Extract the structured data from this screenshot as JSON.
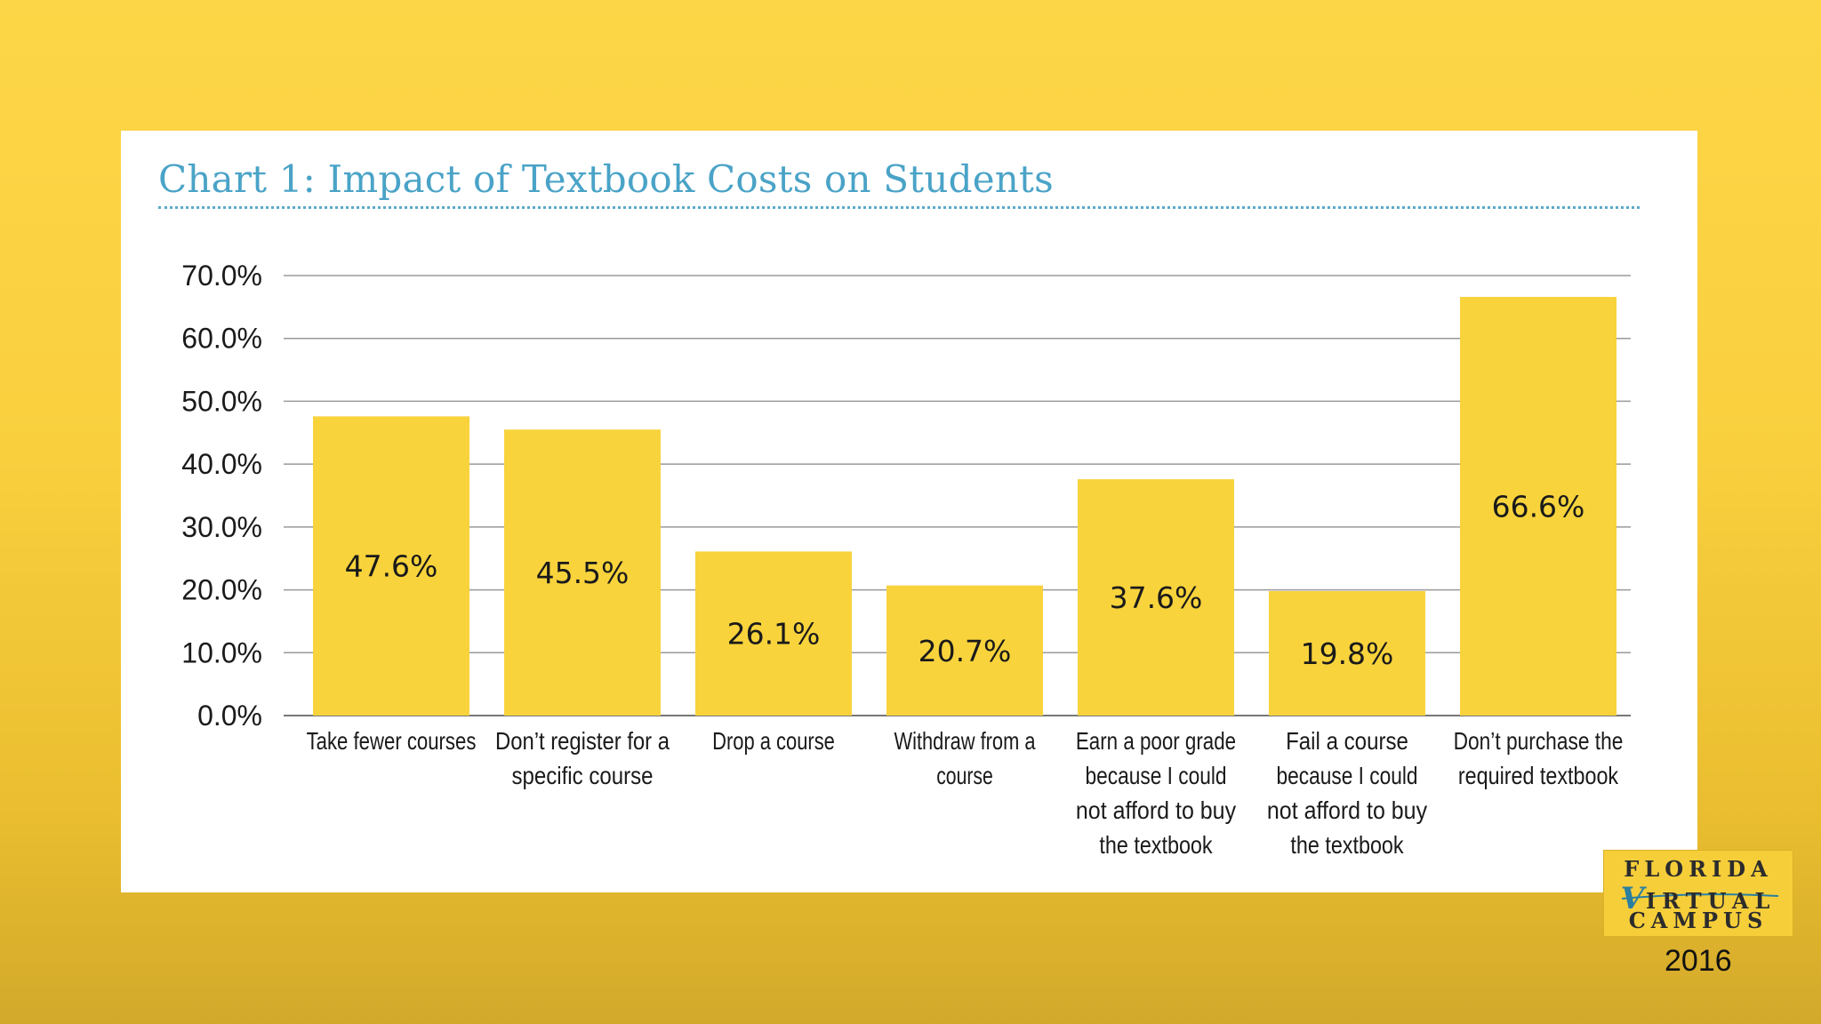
{
  "title": "Chart 1: Impact of Textbook Costs on Students",
  "logo": {
    "line1": "FLORIDA",
    "line2_initial": "V",
    "line2_rest": "IRTUAL",
    "line3": "CAMPUS"
  },
  "year": "2016",
  "colors": {
    "bar": "#f8d33c",
    "title": "#4aa3c7",
    "grid": "#9a9a9a",
    "axis": "#777777"
  },
  "chart_data": {
    "type": "bar",
    "title": "Chart 1: Impact of Textbook Costs on Students",
    "xlabel": "",
    "ylabel": "",
    "ylim": [
      0,
      70
    ],
    "yticks": [
      "0.0%",
      "10.0%",
      "20.0%",
      "30.0%",
      "40.0%",
      "50.0%",
      "60.0%",
      "70.0%"
    ],
    "grid": true,
    "categories": [
      [
        "Take fewer courses"
      ],
      [
        "Don’t register for a",
        "specific course"
      ],
      [
        "Drop a course"
      ],
      [
        "Withdraw from a",
        "course"
      ],
      [
        "Earn a poor grade",
        "because I could",
        "not afford to buy",
        "the textbook"
      ],
      [
        "Fail a course",
        "because I could",
        "not afford to buy",
        "the textbook"
      ],
      [
        "Don’t purchase the",
        "required textbook"
      ]
    ],
    "values": [
      47.6,
      45.5,
      26.1,
      20.7,
      37.6,
      19.8,
      66.6
    ],
    "labels": [
      "47.6%",
      "45.5%",
      "26.1%",
      "20.7%",
      "37.6%",
      "19.8%",
      "66.6%"
    ]
  }
}
